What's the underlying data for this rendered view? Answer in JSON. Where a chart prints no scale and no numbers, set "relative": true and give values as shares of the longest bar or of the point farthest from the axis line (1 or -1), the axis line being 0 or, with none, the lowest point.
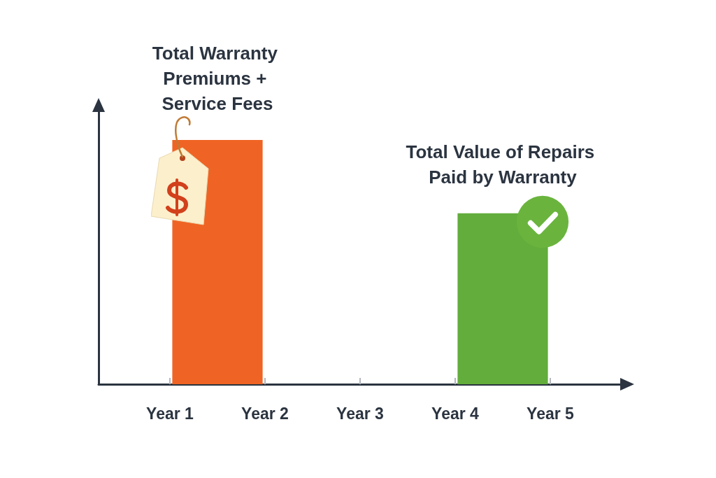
{
  "chart_data": {
    "type": "bar",
    "relative": true,
    "categories": [
      null,
      "Year 1",
      null,
      "Year 2",
      null,
      "Year 3",
      null,
      "Year 4",
      null,
      "Year 5",
      null
    ],
    "series": [
      {
        "name": "Total Warranty Premiums + Service Fees",
        "color": "#ef6424",
        "values": [
          null,
          null,
          1,
          null,
          null,
          null,
          null,
          null,
          null,
          null,
          null
        ]
      },
      {
        "name": "Total Value of Repairs Paid by Warranty",
        "color": "#62ad3c",
        "values": [
          null,
          null,
          null,
          null,
          null,
          null,
          null,
          null,
          0.7,
          null,
          null
        ]
      }
    ]
  }
}
